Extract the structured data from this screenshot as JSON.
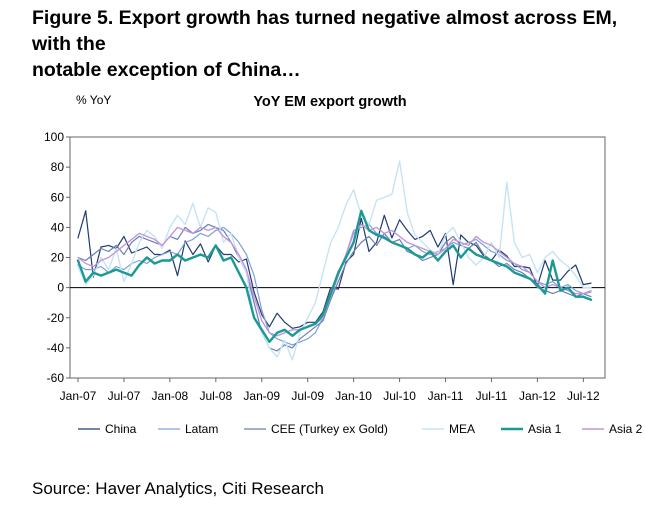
{
  "figure": {
    "title_line1": "Figure 5. Export growth has turned negative almost across EM, with the",
    "title_line2": "notable exception of China…",
    "source": "Source:  Haver Analytics, Citi Research"
  },
  "chart_data": {
    "type": "line",
    "title": "YoY EM export growth",
    "ylabel": "% YoY",
    "xlabel": "",
    "ylim": [
      -60,
      100
    ],
    "yticks": [
      100,
      80,
      60,
      40,
      20,
      0,
      -20,
      -40,
      -60
    ],
    "x_start_month": "Jan-07",
    "x_range_months": [
      0,
      67
    ],
    "xticks": [
      {
        "m": 0,
        "label": "Jan-07"
      },
      {
        "m": 6,
        "label": "Jul-07"
      },
      {
        "m": 12,
        "label": "Jan-08"
      },
      {
        "m": 18,
        "label": "Jul-08"
      },
      {
        "m": 24,
        "label": "Jan-09"
      },
      {
        "m": 30,
        "label": "Jul-09"
      },
      {
        "m": 36,
        "label": "Jan-10"
      },
      {
        "m": 42,
        "label": "Jul-10"
      },
      {
        "m": 48,
        "label": "Jan-11"
      },
      {
        "m": 54,
        "label": "Jul-11"
      },
      {
        "m": 60,
        "label": "Jan-12"
      },
      {
        "m": 66,
        "label": "Jul-12"
      }
    ],
    "legend_position": "bottom",
    "series": [
      {
        "name": "China",
        "color": "#1f3b73",
        "width": 1.2,
        "values": [
          33,
          51,
          7,
          27,
          28,
          26,
          34,
          23,
          25,
          27,
          22,
          22,
          25,
          8,
          31,
          22,
          29,
          17,
          28,
          22,
          22,
          17,
          19,
          -3,
          -18,
          -26,
          -17,
          -23,
          -27,
          -26,
          -23,
          -23,
          -16,
          0,
          -1,
          17,
          22,
          46,
          24,
          30,
          48,
          33,
          45,
          38,
          32,
          34,
          38,
          27,
          36,
          2,
          35,
          30,
          28,
          21,
          18,
          25,
          21,
          14,
          14,
          13,
          1,
          18,
          5,
          5,
          11,
          15,
          2,
          3
        ]
      },
      {
        "name": "Latam",
        "color": "#7fa0d6",
        "width": 1.2,
        "values": [
          15,
          12,
          12,
          14,
          10,
          14,
          12,
          16,
          18,
          16,
          20,
          22,
          24,
          22,
          30,
          32,
          36,
          34,
          38,
          40,
          36,
          30,
          22,
          8,
          -15,
          -30,
          -34,
          -36,
          -38,
          -36,
          -34,
          -30,
          -20,
          -8,
          10,
          22,
          38,
          40,
          42,
          36,
          34,
          30,
          28,
          26,
          28,
          24,
          22,
          24,
          26,
          30,
          28,
          30,
          32,
          28,
          24,
          22,
          18,
          16,
          12,
          10,
          4,
          2,
          4,
          0,
          2,
          -2,
          -4,
          -3
        ]
      },
      {
        "name": "CEE (Turkey ex Gold)",
        "color": "#6a7fb3",
        "width": 1.2,
        "values": [
          20,
          18,
          22,
          26,
          24,
          28,
          22,
          30,
          34,
          32,
          30,
          28,
          34,
          32,
          40,
          36,
          38,
          42,
          40,
          38,
          30,
          20,
          10,
          -10,
          -30,
          -40,
          -42,
          -38,
          -40,
          -34,
          -30,
          -26,
          -22,
          -8,
          4,
          16,
          24,
          30,
          34,
          28,
          36,
          30,
          32,
          24,
          22,
          18,
          20,
          22,
          30,
          34,
          28,
          26,
          30,
          22,
          18,
          14,
          16,
          12,
          10,
          6,
          0,
          -2,
          -4,
          -2,
          -4,
          -6,
          -4,
          -6
        ]
      },
      {
        "name": "MEA",
        "color": "#c6e3f5",
        "width": 1.4,
        "values": [
          14,
          2,
          8,
          20,
          12,
          26,
          4,
          16,
          30,
          38,
          34,
          26,
          40,
          48,
          42,
          56,
          40,
          53,
          50,
          30,
          36,
          20,
          10,
          -20,
          -30,
          -40,
          -46,
          -35,
          -48,
          -30,
          -20,
          -10,
          10,
          30,
          40,
          55,
          65,
          48,
          42,
          58,
          60,
          62,
          84,
          50,
          35,
          30,
          25,
          22,
          35,
          40,
          30,
          20,
          15,
          20,
          30,
          20,
          70,
          30,
          20,
          22,
          10,
          20,
          24,
          18,
          14,
          8,
          0,
          0
        ]
      },
      {
        "name": "Asia 1",
        "color": "#1a9a92",
        "width": 2.4,
        "values": [
          18,
          4,
          10,
          8,
          10,
          12,
          10,
          8,
          15,
          20,
          16,
          18,
          18,
          22,
          18,
          20,
          22,
          20,
          28,
          18,
          20,
          10,
          0,
          -20,
          -28,
          -36,
          -30,
          -28,
          -32,
          -28,
          -26,
          -24,
          -18,
          -4,
          10,
          20,
          30,
          51,
          38,
          35,
          33,
          30,
          28,
          26,
          22,
          20,
          24,
          18,
          24,
          28,
          20,
          26,
          22,
          20,
          18,
          16,
          14,
          10,
          8,
          6,
          2,
          -4,
          18,
          -2,
          0,
          -6,
          -6,
          -8
        ]
      },
      {
        "name": "Asia 2",
        "color": "#c396dc",
        "width": 1.4,
        "values": [
          20,
          16,
          14,
          18,
          20,
          24,
          28,
          32,
          36,
          34,
          32,
          28,
          34,
          40,
          38,
          36,
          40,
          38,
          40,
          34,
          30,
          22,
          12,
          -6,
          -22,
          -30,
          -32,
          -30,
          -28,
          -28,
          -26,
          -24,
          -20,
          -6,
          8,
          22,
          36,
          42,
          38,
          40,
          36,
          38,
          34,
          30,
          28,
          26,
          24,
          22,
          26,
          32,
          30,
          28,
          34,
          30,
          28,
          24,
          20,
          16,
          14,
          10,
          4,
          0,
          2,
          0,
          -2,
          -4,
          -4,
          -2
        ]
      }
    ]
  }
}
